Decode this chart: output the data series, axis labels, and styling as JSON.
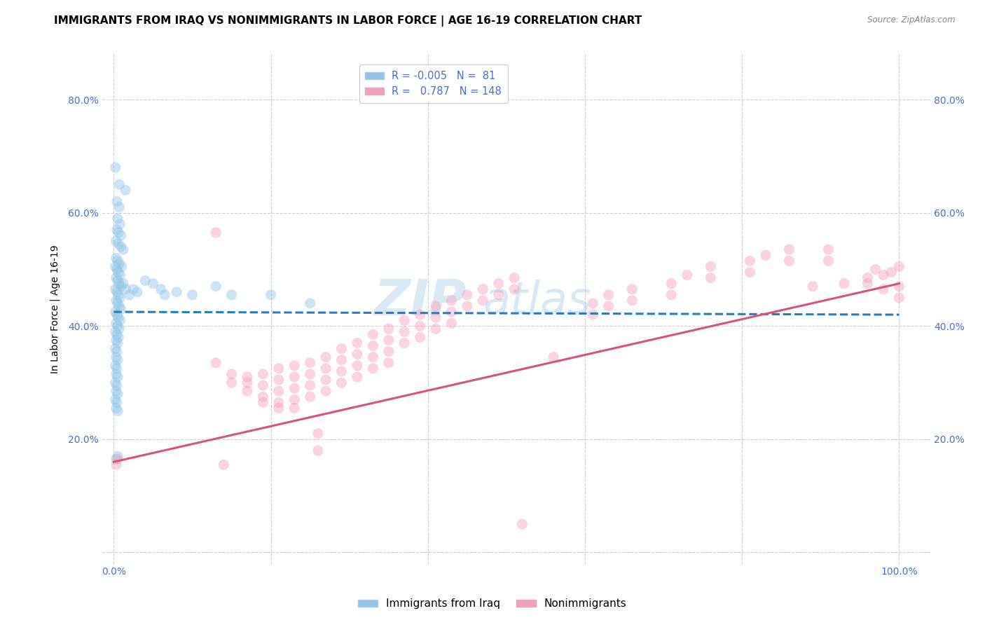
{
  "title": "IMMIGRANTS FROM IRAQ VS NONIMMIGRANTS IN LABOR FORCE | AGE 16-19 CORRELATION CHART",
  "source": "Source: ZipAtlas.com",
  "ylabel": "In Labor Force | Age 16-19",
  "x_ticks": [
    0.0,
    0.2,
    0.4,
    0.6,
    0.8,
    1.0
  ],
  "x_tick_labels": [
    "0.0%",
    "",
    "",
    "",
    "",
    "100.0%"
  ],
  "y_ticks": [
    0.0,
    0.2,
    0.4,
    0.6,
    0.8
  ],
  "y_tick_labels": [
    "",
    "20.0%",
    "40.0%",
    "60.0%",
    "80.0%"
  ],
  "xlim": [
    -0.015,
    1.04
  ],
  "ylim": [
    -0.02,
    0.88
  ],
  "legend_labels": [
    "Immigrants from Iraq",
    "Nonimmigrants"
  ],
  "blue_R": "-0.005",
  "blue_N": "81",
  "pink_R": "0.787",
  "pink_N": "148",
  "blue_color": "#92c5e8",
  "pink_color": "#f4a0bb",
  "blue_scatter": [
    [
      0.002,
      0.68
    ],
    [
      0.007,
      0.65
    ],
    [
      0.015,
      0.64
    ],
    [
      0.004,
      0.62
    ],
    [
      0.007,
      0.61
    ],
    [
      0.005,
      0.59
    ],
    [
      0.008,
      0.58
    ],
    [
      0.004,
      0.57
    ],
    [
      0.006,
      0.565
    ],
    [
      0.009,
      0.56
    ],
    [
      0.003,
      0.55
    ],
    [
      0.006,
      0.545
    ],
    [
      0.009,
      0.54
    ],
    [
      0.012,
      0.535
    ],
    [
      0.003,
      0.52
    ],
    [
      0.005,
      0.515
    ],
    [
      0.007,
      0.51
    ],
    [
      0.01,
      0.505
    ],
    [
      0.002,
      0.505
    ],
    [
      0.004,
      0.5
    ],
    [
      0.006,
      0.495
    ],
    [
      0.008,
      0.49
    ],
    [
      0.003,
      0.485
    ],
    [
      0.005,
      0.48
    ],
    [
      0.007,
      0.475
    ],
    [
      0.009,
      0.47
    ],
    [
      0.002,
      0.465
    ],
    [
      0.004,
      0.46
    ],
    [
      0.006,
      0.455
    ],
    [
      0.008,
      0.45
    ],
    [
      0.003,
      0.445
    ],
    [
      0.005,
      0.44
    ],
    [
      0.007,
      0.435
    ],
    [
      0.009,
      0.43
    ],
    [
      0.002,
      0.425
    ],
    [
      0.004,
      0.42
    ],
    [
      0.006,
      0.415
    ],
    [
      0.008,
      0.41
    ],
    [
      0.003,
      0.405
    ],
    [
      0.005,
      0.4
    ],
    [
      0.007,
      0.395
    ],
    [
      0.002,
      0.39
    ],
    [
      0.004,
      0.385
    ],
    [
      0.006,
      0.38
    ],
    [
      0.003,
      0.375
    ],
    [
      0.005,
      0.37
    ],
    [
      0.002,
      0.36
    ],
    [
      0.004,
      0.355
    ],
    [
      0.003,
      0.345
    ],
    [
      0.005,
      0.34
    ],
    [
      0.002,
      0.33
    ],
    [
      0.004,
      0.325
    ],
    [
      0.003,
      0.315
    ],
    [
      0.005,
      0.31
    ],
    [
      0.002,
      0.3
    ],
    [
      0.004,
      0.295
    ],
    [
      0.003,
      0.285
    ],
    [
      0.005,
      0.28
    ],
    [
      0.002,
      0.27
    ],
    [
      0.004,
      0.265
    ],
    [
      0.003,
      0.255
    ],
    [
      0.005,
      0.25
    ],
    [
      0.012,
      0.475
    ],
    [
      0.015,
      0.465
    ],
    [
      0.02,
      0.455
    ],
    [
      0.025,
      0.465
    ],
    [
      0.03,
      0.46
    ],
    [
      0.04,
      0.48
    ],
    [
      0.05,
      0.475
    ],
    [
      0.06,
      0.465
    ],
    [
      0.065,
      0.455
    ],
    [
      0.08,
      0.46
    ],
    [
      0.1,
      0.455
    ],
    [
      0.13,
      0.47
    ],
    [
      0.15,
      0.455
    ],
    [
      0.2,
      0.455
    ],
    [
      0.25,
      0.44
    ],
    [
      0.003,
      0.165
    ],
    [
      0.005,
      0.17
    ]
  ],
  "pink_scatter": [
    [
      0.003,
      0.155
    ],
    [
      0.005,
      0.165
    ],
    [
      0.13,
      0.565
    ],
    [
      0.13,
      0.335
    ],
    [
      0.15,
      0.315
    ],
    [
      0.15,
      0.3
    ],
    [
      0.17,
      0.31
    ],
    [
      0.17,
      0.3
    ],
    [
      0.17,
      0.285
    ],
    [
      0.19,
      0.315
    ],
    [
      0.19,
      0.295
    ],
    [
      0.19,
      0.275
    ],
    [
      0.19,
      0.265
    ],
    [
      0.21,
      0.325
    ],
    [
      0.21,
      0.305
    ],
    [
      0.21,
      0.285
    ],
    [
      0.21,
      0.265
    ],
    [
      0.21,
      0.255
    ],
    [
      0.23,
      0.33
    ],
    [
      0.23,
      0.31
    ],
    [
      0.23,
      0.29
    ],
    [
      0.23,
      0.27
    ],
    [
      0.23,
      0.255
    ],
    [
      0.25,
      0.335
    ],
    [
      0.25,
      0.315
    ],
    [
      0.25,
      0.295
    ],
    [
      0.25,
      0.275
    ],
    [
      0.27,
      0.345
    ],
    [
      0.27,
      0.325
    ],
    [
      0.27,
      0.305
    ],
    [
      0.27,
      0.285
    ],
    [
      0.29,
      0.36
    ],
    [
      0.29,
      0.34
    ],
    [
      0.29,
      0.32
    ],
    [
      0.29,
      0.3
    ],
    [
      0.31,
      0.37
    ],
    [
      0.31,
      0.35
    ],
    [
      0.31,
      0.33
    ],
    [
      0.31,
      0.31
    ],
    [
      0.33,
      0.385
    ],
    [
      0.33,
      0.365
    ],
    [
      0.33,
      0.345
    ],
    [
      0.33,
      0.325
    ],
    [
      0.35,
      0.395
    ],
    [
      0.35,
      0.375
    ],
    [
      0.35,
      0.355
    ],
    [
      0.35,
      0.335
    ],
    [
      0.37,
      0.41
    ],
    [
      0.37,
      0.39
    ],
    [
      0.37,
      0.37
    ],
    [
      0.39,
      0.42
    ],
    [
      0.39,
      0.4
    ],
    [
      0.39,
      0.38
    ],
    [
      0.41,
      0.435
    ],
    [
      0.41,
      0.415
    ],
    [
      0.41,
      0.395
    ],
    [
      0.43,
      0.445
    ],
    [
      0.43,
      0.425
    ],
    [
      0.43,
      0.405
    ],
    [
      0.45,
      0.455
    ],
    [
      0.45,
      0.435
    ],
    [
      0.47,
      0.465
    ],
    [
      0.47,
      0.445
    ],
    [
      0.49,
      0.475
    ],
    [
      0.49,
      0.455
    ],
    [
      0.51,
      0.485
    ],
    [
      0.51,
      0.465
    ],
    [
      0.56,
      0.345
    ],
    [
      0.61,
      0.44
    ],
    [
      0.61,
      0.42
    ],
    [
      0.63,
      0.455
    ],
    [
      0.63,
      0.435
    ],
    [
      0.66,
      0.465
    ],
    [
      0.66,
      0.445
    ],
    [
      0.71,
      0.475
    ],
    [
      0.71,
      0.455
    ],
    [
      0.73,
      0.49
    ],
    [
      0.76,
      0.505
    ],
    [
      0.76,
      0.485
    ],
    [
      0.81,
      0.515
    ],
    [
      0.81,
      0.495
    ],
    [
      0.83,
      0.525
    ],
    [
      0.86,
      0.535
    ],
    [
      0.86,
      0.515
    ],
    [
      0.89,
      0.47
    ],
    [
      0.91,
      0.535
    ],
    [
      0.91,
      0.515
    ],
    [
      0.93,
      0.475
    ],
    [
      0.96,
      0.475
    ],
    [
      0.98,
      0.465
    ],
    [
      1.0,
      0.47
    ],
    [
      1.0,
      0.45
    ],
    [
      1.0,
      0.505
    ],
    [
      0.99,
      0.495
    ],
    [
      0.98,
      0.49
    ],
    [
      0.97,
      0.5
    ],
    [
      0.96,
      0.485
    ],
    [
      0.52,
      0.05
    ],
    [
      0.14,
      0.155
    ],
    [
      0.26,
      0.21
    ],
    [
      0.26,
      0.18
    ]
  ],
  "blue_line_x": [
    0.0,
    1.0
  ],
  "blue_line_y": [
    0.425,
    0.42
  ],
  "pink_line_x": [
    0.0,
    1.0
  ],
  "pink_line_y": [
    0.16,
    0.475
  ],
  "watermark_line1": "ZIP",
  "watermark_line2": "atlas",
  "background_color": "#ffffff",
  "grid_color": "#d0d0d0",
  "title_fontsize": 11,
  "label_fontsize": 10,
  "tick_fontsize": 10,
  "scatter_size": 120,
  "scatter_alpha": 0.45
}
